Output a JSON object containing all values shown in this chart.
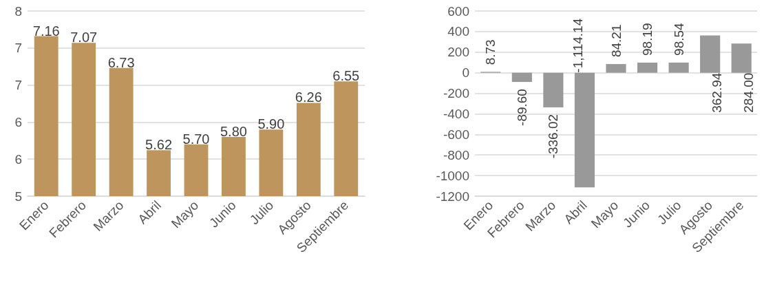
{
  "chart_data": [
    {
      "type": "bar",
      "categories": [
        "Enero",
        "Febrero",
        "Marzo",
        "Abril",
        "Mayo",
        "Junio",
        "Julio",
        "Agosto",
        "Septiembre"
      ],
      "values": [
        7.16,
        7.07,
        6.73,
        5.62,
        5.7,
        5.8,
        5.9,
        6.26,
        6.55
      ],
      "value_labels": [
        "7.16",
        "7.07",
        "6.73",
        "5.62",
        "5.70",
        "5.80",
        "5.90",
        "6.26",
        "6.55"
      ],
      "color": "#bd955d",
      "ylim": [
        5,
        7.5
      ],
      "yticks": [
        5,
        {
          "value": 5.5,
          "label": "6"
        },
        6,
        {
          "value": 6.5,
          "label": "7"
        },
        7,
        {
          "value": 7.5,
          "label": "8"
        }
      ],
      "grid": "y"
    },
    {
      "type": "bar",
      "categories": [
        "Enero",
        "Febrero",
        "Marzo",
        "Abril",
        "Mayo",
        "Junio",
        "Julio",
        "Agosto",
        "Septiembre"
      ],
      "values": [
        8.73,
        -89.6,
        -336.02,
        -1114.14,
        84.21,
        98.19,
        98.54,
        362.94,
        284.0
      ],
      "value_labels": [
        "8.73",
        "-89.60",
        "-336.02",
        "-1,114.14",
        "84.21",
        "98.19",
        "98.54",
        "362.94",
        "284.00"
      ],
      "color": "#999999",
      "ylim": [
        -1200,
        600
      ],
      "yticks": [
        -1200,
        -1000,
        -800,
        -600,
        -400,
        -200,
        0,
        200,
        400,
        600
      ],
      "grid": "y"
    }
  ]
}
